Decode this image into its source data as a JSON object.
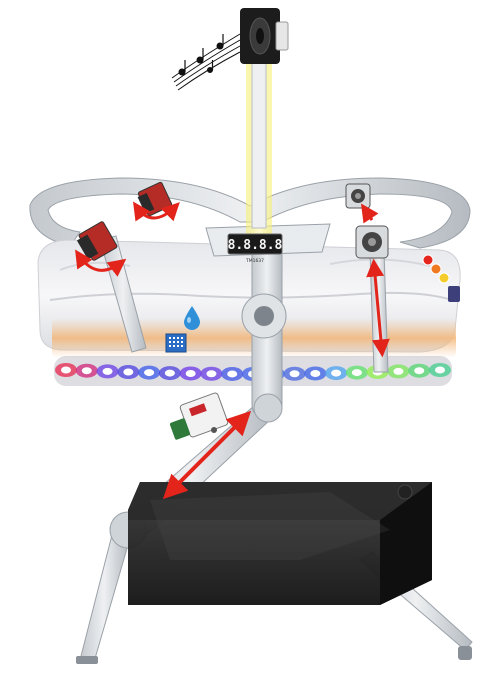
{
  "display": {
    "digits": "8.8.8.8",
    "brand": "TM1637"
  },
  "colors": {
    "metal": "#d9dde1",
    "metal_dark": "#9aa1a8",
    "fabric": "#f2f2f4",
    "fabric_shadow": "#d8d9de",
    "arrow": "#e3241b",
    "glow": "#f3c089",
    "light_beam": "#f8f07a",
    "base": "#1c1c1c",
    "display_bg": "#1a1a1a",
    "display_text": "#f4f4f4",
    "water_drop": "#2f8fd8",
    "sensor_blue": "#2b6cc4"
  },
  "led_strip": [
    "#e8264f",
    "#d0247a",
    "#6a3ee6",
    "#4c3fe0",
    "#3a59ea",
    "#4b40de",
    "#6b34e8",
    "#6a3ee6",
    "#3f54e6",
    "#3c5ee9",
    "#3b6cea",
    "#4766e0",
    "#3a60e8",
    "#4aa1f0",
    "#5fe06c",
    "#8cf04a",
    "#7be65b",
    "#51d66f",
    "#40ce8e"
  ],
  "status_leds": [
    "#e4261e",
    "#f07a22",
    "#f4cc2b"
  ],
  "icons": [
    "music-notes-icon",
    "speaker-icon",
    "water-drop-icon",
    "humidity-sensor-icon"
  ]
}
